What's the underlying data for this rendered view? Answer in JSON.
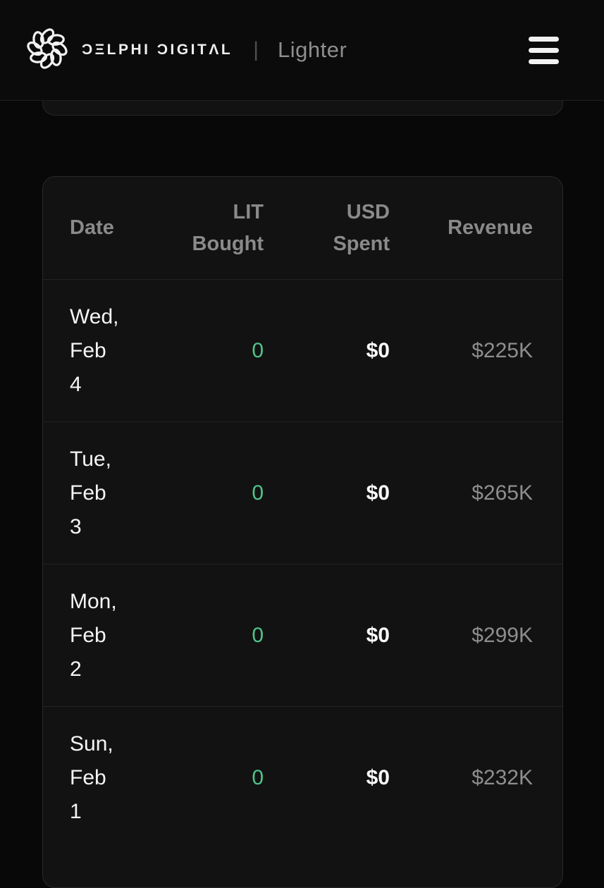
{
  "appbar": {
    "brand_name": "DELPHI DIGITAL",
    "brand_display": "ƆΞLPHI ƆIGITΛL",
    "separator": "|",
    "product_name": "Lighter"
  },
  "table": {
    "columns": {
      "date": "Date",
      "lit_bought": "LIT Bought",
      "usd_spent": "USD Spent",
      "revenue": "Revenue"
    },
    "rows": [
      {
        "date": "Wed, Feb 4",
        "lit_bought": "0",
        "usd_spent": "$0",
        "revenue": "$225K"
      },
      {
        "date": "Tue, Feb 3",
        "lit_bought": "0",
        "usd_spent": "$0",
        "revenue": "$265K"
      },
      {
        "date": "Mon, Feb 2",
        "lit_bought": "0",
        "usd_spent": "$0",
        "revenue": "$299K"
      },
      {
        "date": "Sun, Feb 1",
        "lit_bought": "0",
        "usd_spent": "$0",
        "revenue": "$232K"
      }
    ]
  },
  "colors": {
    "accent_green": "#4fc38a",
    "text_primary": "#f5f5f5",
    "text_secondary": "#8a8a8a",
    "card_background": "#121212",
    "page_background": "#080808",
    "border": "#282828"
  }
}
